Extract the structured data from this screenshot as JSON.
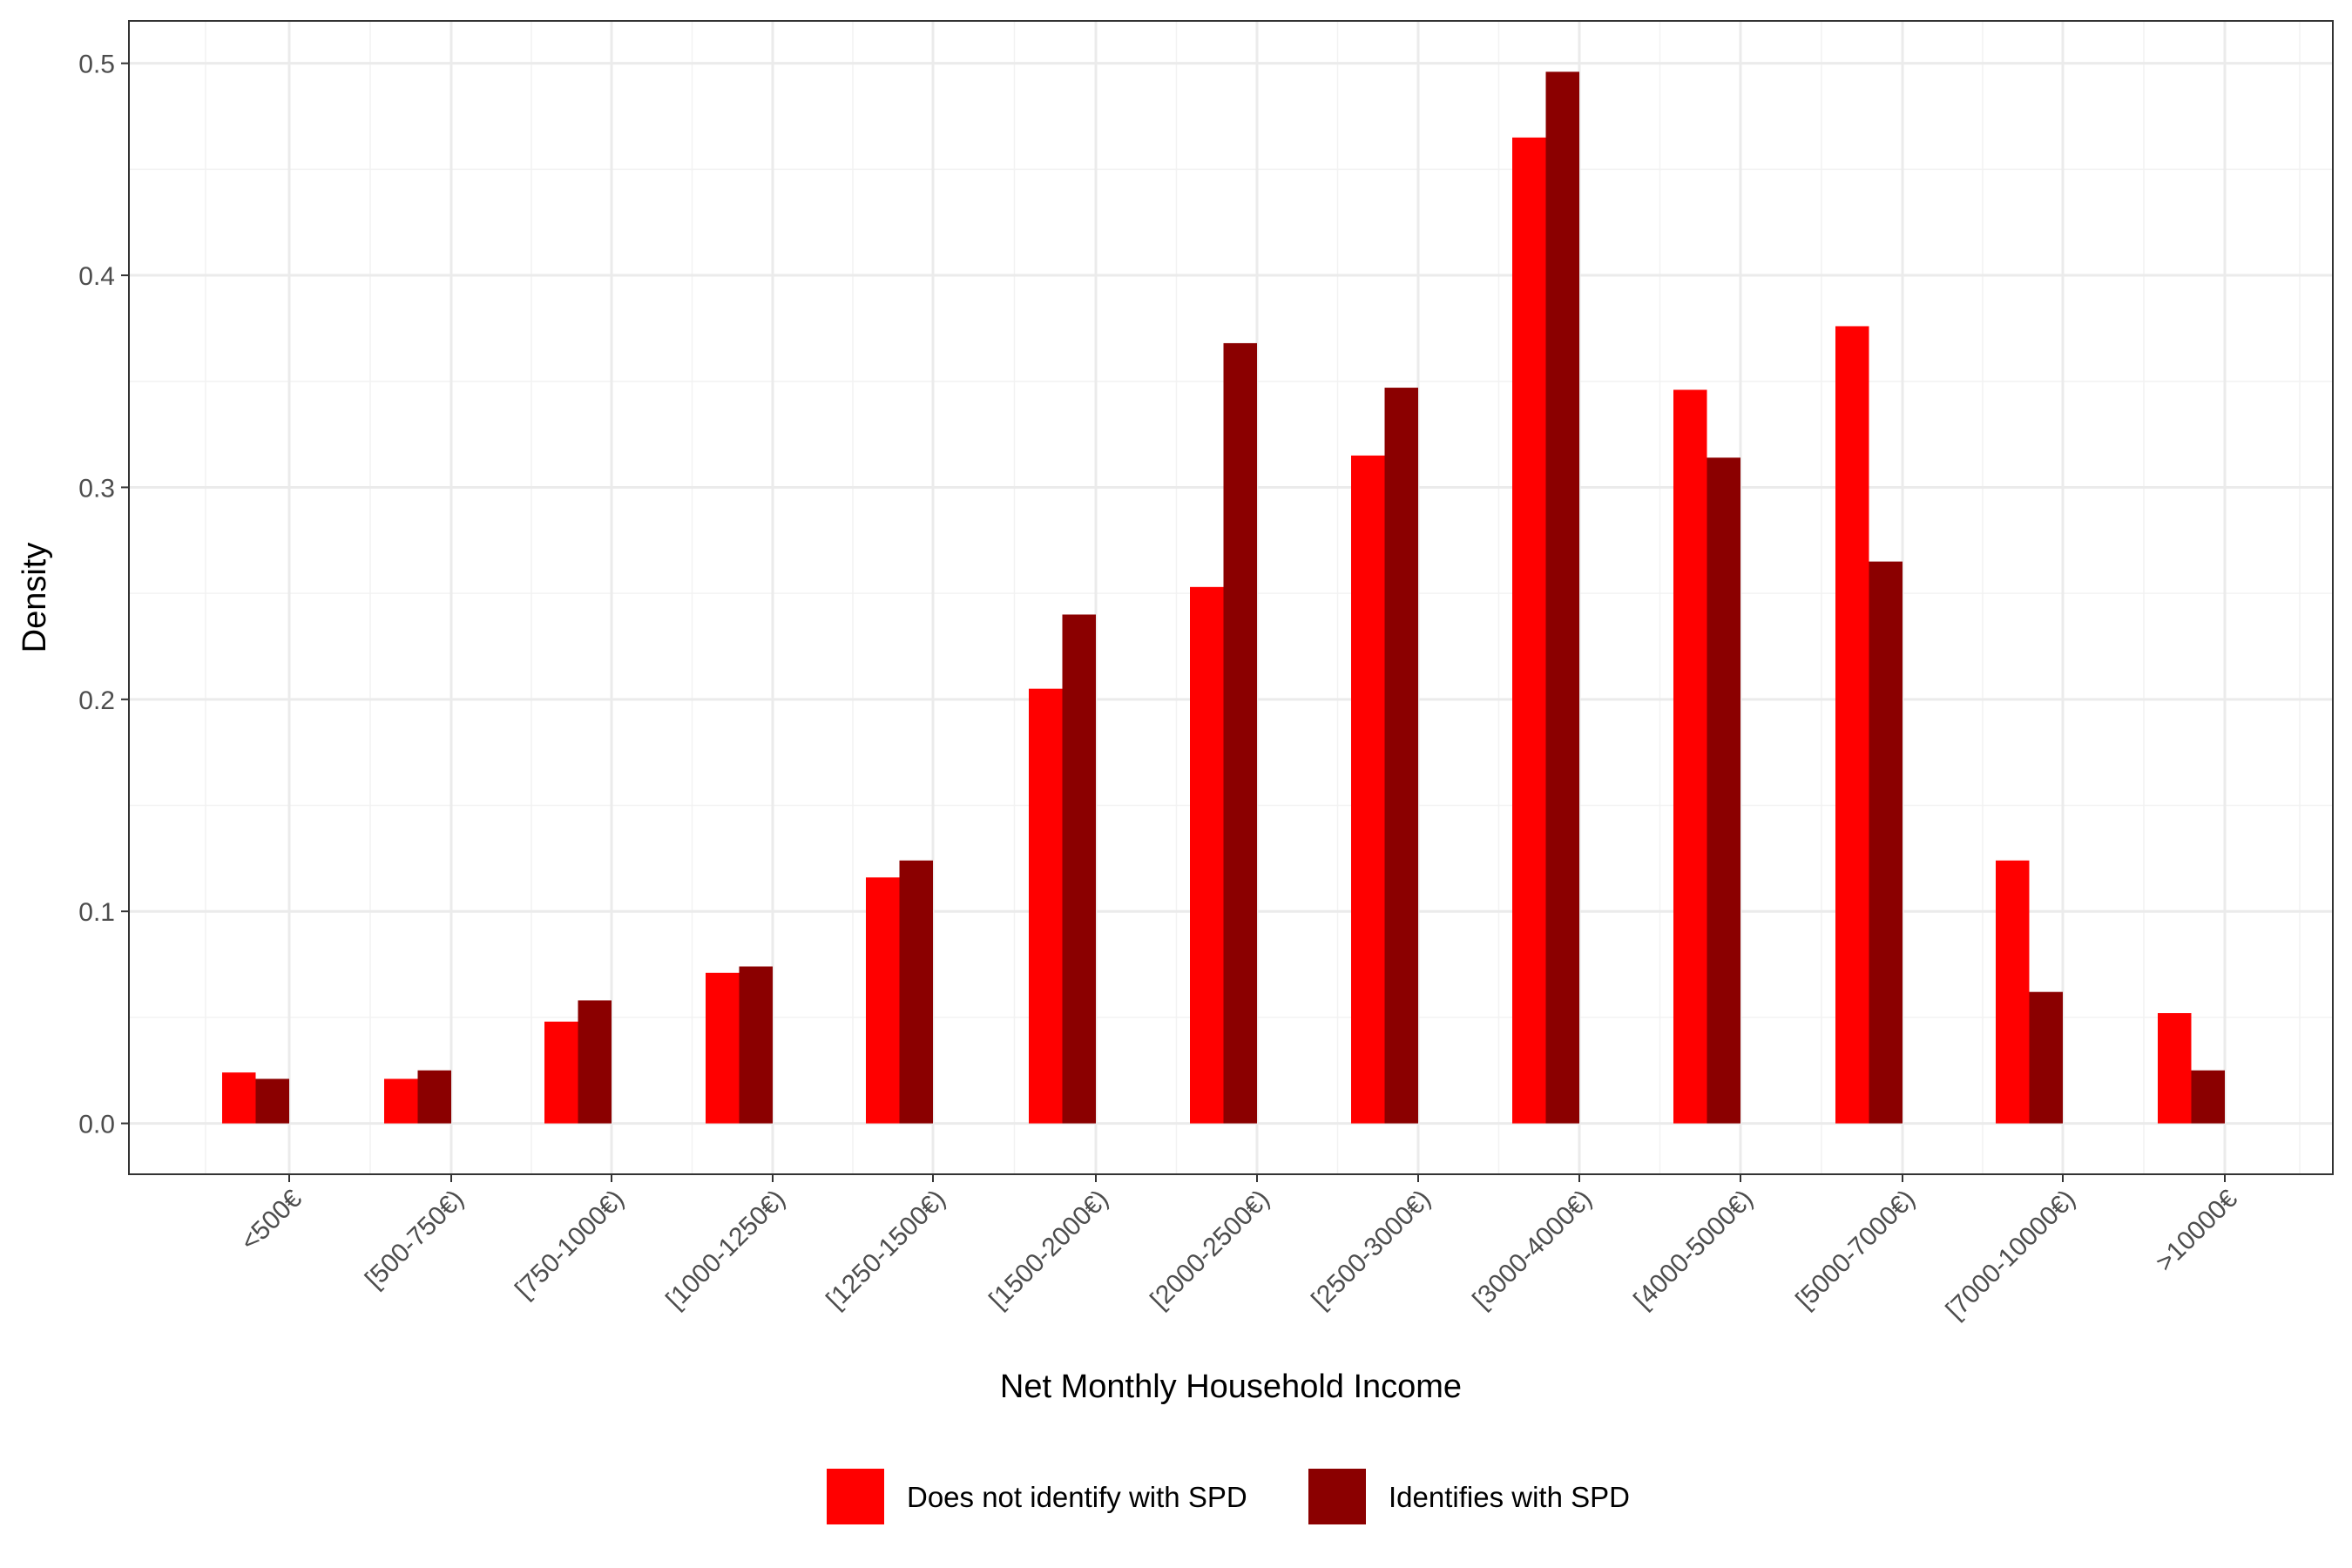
{
  "chart_data": {
    "type": "bar",
    "xlabel": "Net Monthly Household Income",
    "ylabel": "Density",
    "ylim": [
      -0.024,
      0.52
    ],
    "yticks": [
      "0.0",
      "0.1",
      "0.2",
      "0.3",
      "0.4",
      "0.5"
    ],
    "grid": true,
    "legend_position": "bottom",
    "categories": [
      "<500€",
      "[500-750€)",
      "[750-1000€)",
      "[1000-1250€)",
      "[1250-1500€)",
      "[1500-2000€)",
      "[2000-2500€)",
      "[2500-3000€)",
      "[3000-4000€)",
      "[4000-5000€)",
      "[5000-7000€)",
      "[7000-10000€)",
      ">10000€"
    ],
    "series": [
      {
        "name": "Does not identify with SPD",
        "color": "#ff0000",
        "values": [
          0.024,
          0.021,
          0.048,
          0.071,
          0.116,
          0.205,
          0.253,
          0.315,
          0.465,
          0.346,
          0.376,
          0.124,
          0.052
        ]
      },
      {
        "name": "Identifies with SPD",
        "color": "#8b0000",
        "values": [
          0.021,
          0.025,
          0.058,
          0.074,
          0.124,
          0.24,
          0.368,
          0.347,
          0.496,
          0.314,
          0.265,
          0.062,
          0.025
        ]
      }
    ]
  }
}
